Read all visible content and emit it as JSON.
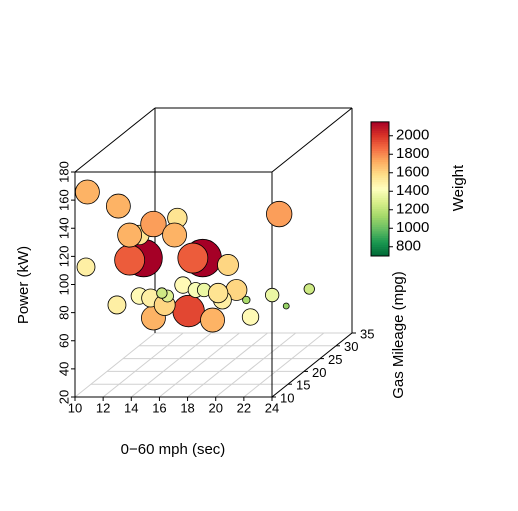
{
  "chart_data": {
    "type": "scatter3d",
    "xlabel": "0−60 mph (sec)",
    "ylabel": "Gas Mileage (mpg)",
    "zlabel": "Power (kW)",
    "colorbar_label": "Weight",
    "xlim": [
      10,
      24
    ],
    "xticks": [
      10,
      12,
      14,
      16,
      18,
      20,
      22,
      24
    ],
    "ylim": [
      10,
      35
    ],
    "yticks": [
      10,
      15,
      20,
      25,
      30,
      35
    ],
    "zlim": [
      20,
      180
    ],
    "zticks": [
      20,
      40,
      60,
      80,
      100,
      120,
      140,
      160,
      180
    ],
    "clim": [
      700,
      2150
    ],
    "cticks": [
      800,
      1000,
      1200,
      1400,
      1600,
      1800,
      2000
    ],
    "colormap": "RdYlGn_r",
    "floor_grid": true,
    "x": [
      10.2,
      10.1,
      12.3,
      13.2,
      12.6,
      12.4,
      13.2,
      12.3,
      13.3,
      15.0,
      14.8,
      16.8,
      16.1,
      18.6,
      21.1,
      15.8,
      17.5,
      13.3,
      12.3,
      13.1,
      14.1,
      15.4,
      16.3,
      16.9,
      18.0,
      19.2,
      18.2,
      17.9,
      20.2,
      20.6,
      19.9,
      21.6,
      22.1,
      14.3,
      13.9
    ],
    "y": [
      13,
      13,
      13,
      13,
      20,
      13,
      13,
      20,
      20,
      20,
      20,
      20,
      20,
      20,
      25,
      20,
      20,
      20,
      20,
      20,
      20,
      20,
      20,
      20,
      20,
      20,
      20,
      20,
      20,
      25,
      20,
      25,
      30,
      20,
      20
    ],
    "z": [
      160.3,
      107.0,
      80.0,
      111.9,
      100.6,
      150.3,
      129.7,
      117.0,
      124.8,
      129.1,
      117.0,
      100.6,
      100.6,
      95.7,
      122.8,
      62.9,
      56.5,
      58.0,
      73.6,
      72.2,
      67.2,
      81.4,
      77.9,
      77.9,
      74.3,
      77.9,
      70.8,
      75.7,
      58.7,
      65.2,
      70.8,
      57.4,
      60.4,
      73.6,
      75.7
    ],
    "weight": [
      1700,
      1500,
      1500,
      1900,
      2150,
      1700,
      1700,
      1550,
      1750,
      1550,
      1700,
      2150,
      1900,
      1600,
      1750,
      1950,
      1700,
      1700,
      1450,
      1500,
      1600,
      1450,
      1400,
      1350,
      1450,
      1600,
      1500,
      1550,
      1450,
      1350,
      1150,
      1100,
      1250,
      1300,
      1250
    ]
  }
}
